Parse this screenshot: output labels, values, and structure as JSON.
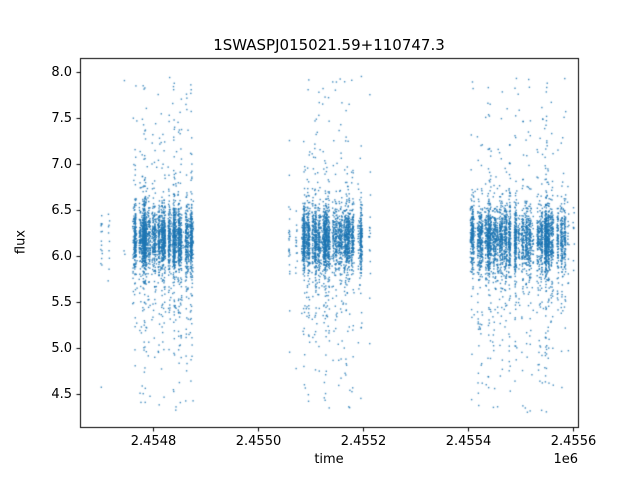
{
  "chart_data": {
    "type": "scatter",
    "title": "1SWASPJ015021.59+110747.3",
    "xlabel": "time",
    "ylabel": "flux",
    "x_offset_label": "1e6",
    "marker_color": "#1f77b4",
    "xlim": [
      2454660,
      2455610
    ],
    "ylim": [
      4.14,
      8.15
    ],
    "x_ticks": [
      {
        "value": 2454800,
        "label": "2.4548"
      },
      {
        "value": 2455000,
        "label": "2.4550"
      },
      {
        "value": 2455200,
        "label": "2.4552"
      },
      {
        "value": 2455400,
        "label": "2.4554"
      },
      {
        "value": 2455600,
        "label": "2.4556"
      }
    ],
    "y_ticks": [
      {
        "value": 4.5,
        "label": "4.5"
      },
      {
        "value": 5.0,
        "label": "5.0"
      },
      {
        "value": 5.5,
        "label": "5.5"
      },
      {
        "value": 6.0,
        "label": "6.0"
      },
      {
        "value": 6.5,
        "label": "6.5"
      },
      {
        "value": 7.0,
        "label": "7.0"
      },
      {
        "value": 7.5,
        "label": "7.5"
      },
      {
        "value": 8.0,
        "label": "8.0"
      }
    ],
    "seed": 42,
    "y_mixture": {
      "core_mean": 6.18,
      "core_sigma": 0.17,
      "core_frac": 0.78,
      "mid_mean": 6.05,
      "mid_sigma": 0.5,
      "mid_frac": 0.16,
      "tail_min": 4.3,
      "tail_max": 7.95,
      "y_min": 4.28,
      "y_max": 8.02
    },
    "clusters": [
      {
        "x_start": 2454690,
        "x_end": 2454881,
        "core_start": 2454758,
        "core_end": 2454876,
        "core_night_frac": 0.82,
        "n_nights": 60,
        "pts_min": 15,
        "pts_max": 110,
        "night_width": 0.8
      },
      {
        "x_start": 2455047,
        "x_end": 2455228,
        "core_start": 2455083,
        "core_end": 2455198,
        "core_night_frac": 0.82,
        "n_nights": 65,
        "pts_min": 15,
        "pts_max": 100,
        "night_width": 0.8
      },
      {
        "x_start": 2455395,
        "x_end": 2455606,
        "core_start": 2455405,
        "core_end": 2455590,
        "core_night_frac": 0.85,
        "n_nights": 75,
        "pts_min": 15,
        "pts_max": 110,
        "night_width": 0.8
      }
    ]
  }
}
